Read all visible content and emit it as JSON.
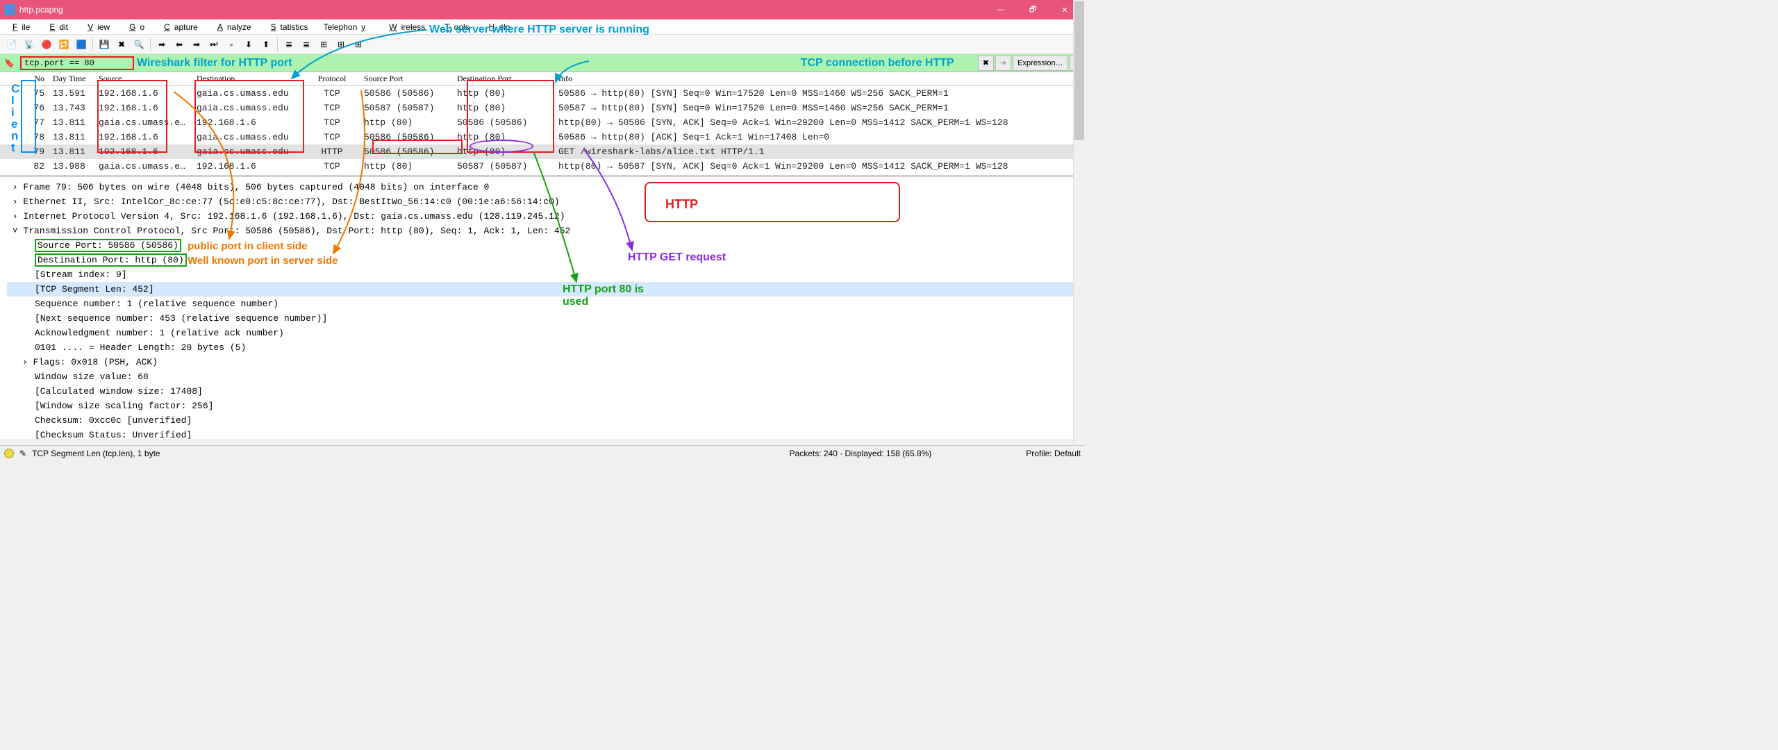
{
  "window": {
    "title": "http.pcapng",
    "minimize": "—",
    "maximize": "🗗",
    "close": "✕"
  },
  "menu": {
    "items": [
      "File",
      "Edit",
      "View",
      "Go",
      "Capture",
      "Analyze",
      "Statistics",
      "Telephony",
      "Wireless",
      "Tools",
      "Help"
    ]
  },
  "toolbar_icons": [
    "📄",
    "📡",
    "🔴",
    "🔁",
    "🟦",
    "💾",
    "✖",
    "🔍",
    "➡",
    "⬅",
    "➡",
    "⏭",
    "▫",
    "⬇",
    "⬆",
    "≣",
    "≣",
    "⊞",
    "⊞",
    "⊞",
    "🔎"
  ],
  "filter": {
    "value": "tcp.port == 80",
    "clear": "✖",
    "arrow": "➜",
    "expression": "Expression…",
    "plus": "+"
  },
  "annotations": {
    "filter_note": "Wireshark filter for HTTP port",
    "tcp_before": "TCP connection before HTTP",
    "web_server": "Web server where HTTP server is running",
    "client": "Client",
    "http_big": "HTTP",
    "http_get": "HTTP GET request",
    "http80": "HTTP port 80 is used",
    "public_port": "public port in client side",
    "well_known": "Well known port in server side",
    "colors": {
      "cyan": "#00a0d0",
      "blue": "#0090ff",
      "red": "#e02020",
      "green": "#15a015",
      "orange": "#ee7700",
      "purple": "#8a2be2"
    }
  },
  "columns": {
    "no": "No",
    "time": "Day Time",
    "src": "Source",
    "dst": "Destination",
    "proto": "Protocol",
    "sport": "Source Port",
    "dport": "Destination Port",
    "info": "Info"
  },
  "packets": [
    {
      "no": "75",
      "time": "13.591",
      "src": "192.168.1.6",
      "dst": "gaia.cs.umass.edu",
      "proto": "TCP",
      "sport": "50586 (50586)",
      "dport": "http (80)",
      "info": "50586 → http(80) [SYN] Seq=0 Win=17520 Len=0 MSS=1460 WS=256 SACK_PERM=1",
      "sel": false
    },
    {
      "no": "76",
      "time": "13.743",
      "src": "192.168.1.6",
      "dst": "gaia.cs.umass.edu",
      "proto": "TCP",
      "sport": "50587 (50587)",
      "dport": "http (80)",
      "info": "50587 → http(80) [SYN] Seq=0 Win=17520 Len=0 MSS=1460 WS=256 SACK_PERM=1",
      "sel": false
    },
    {
      "no": "77",
      "time": "13.811",
      "src": "gaia.cs.umass.e…",
      "dst": "192.168.1.6",
      "proto": "TCP",
      "sport": "http (80)",
      "dport": "50586 (50586)",
      "info": "http(80) → 50586 [SYN, ACK] Seq=0 Ack=1 Win=29200 Len=0 MSS=1412 SACK_PERM=1 WS=128",
      "sel": false
    },
    {
      "no": "78",
      "time": "13.811",
      "src": "192.168.1.6",
      "dst": "gaia.cs.umass.edu",
      "proto": "TCP",
      "sport": "50586 (50586)",
      "dport": "http (80)",
      "info": "50586 → http(80) [ACK] Seq=1 Ack=1 Win=17408 Len=0",
      "sel": false
    },
    {
      "no": "79",
      "time": "13.811",
      "src": "192.168.1.6",
      "dst": "gaia.cs.umass.edu",
      "proto": "HTTP",
      "sport": "50586 (50586)",
      "dport": "http (80)",
      "info": "GET /wireshark-labs/alice.txt HTTP/1.1",
      "sel": true
    },
    {
      "no": "82",
      "time": "13.988",
      "src": "gaia.cs.umass.e…",
      "dst": "192.168.1.6",
      "proto": "TCP",
      "sport": "http (80)",
      "dport": "50587 (50587)",
      "info": "http(80) → 50587 [SYN, ACK] Seq=0 Ack=1 Win=29200 Len=0 MSS=1412 SACK_PERM=1 WS=128",
      "sel": false
    }
  ],
  "details": {
    "l0a": "Frame 79: 506 bytes on wire (4048 bits), 506 bytes captured (4048 bits) on interface 0",
    "l0b": "Ethernet II, Src: IntelCor_8c:ce:77 (5c:e0:c5:8c:ce:77), Dst: BestItWo_56:14:c0 (00:1e:a6:56:14:c0)",
    "l0c": "Internet Protocol Version 4, Src: 192.168.1.6 (192.168.1.6), Dst: gaia.cs.umass.edu (128.119.245.12)",
    "l0d": "Transmission Control Protocol, Src Port: 50586 (50586), Dst Port: http (80), Seq: 1, Ack: 1, Len: 452",
    "l1a": "Source Port: 50586 (50586)",
    "l1b": "Destination Port: http (80)",
    "l1c": "[Stream index: 9]",
    "l1d": "[TCP Segment Len: 452]",
    "l1e": "Sequence number: 1    (relative sequence number)",
    "l1f": "[Next sequence number: 453    (relative sequence number)]",
    "l1g": "Acknowledgment number: 1    (relative ack number)",
    "l1h": "0101 .... = Header Length: 20 bytes (5)",
    "l1i": "Flags: 0x018 (PSH, ACK)",
    "l1j": "Window size value: 68",
    "l1k": "[Calculated window size: 17408]",
    "l1l": "[Window size scaling factor: 256]",
    "l1m": "Checksum: 0xcc0c [unverified]",
    "l1n": "[Checksum Status: Unverified]"
  },
  "status": {
    "left": "TCP Segment Len (tcp.len), 1 byte",
    "mid": "Packets: 240 · Displayed: 158 (65.8%)",
    "right": "Profile: Default"
  }
}
